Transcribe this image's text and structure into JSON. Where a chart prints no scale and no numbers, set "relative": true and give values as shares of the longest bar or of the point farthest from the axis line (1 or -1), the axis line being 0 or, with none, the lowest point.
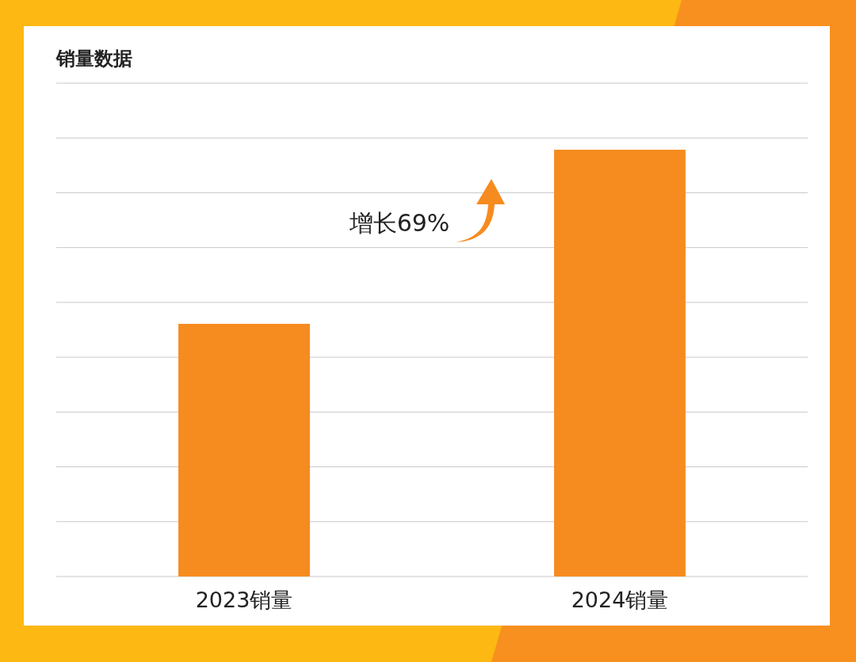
{
  "chart_data": {
    "type": "bar",
    "title": "销量数据",
    "categories": [
      "2023销量",
      "2024销量"
    ],
    "values": [
      0.592,
      1
    ],
    "color": "#f68b1f",
    "relative": true,
    "grid": "y",
    "annotations": [
      "增长69%"
    ]
  }
}
